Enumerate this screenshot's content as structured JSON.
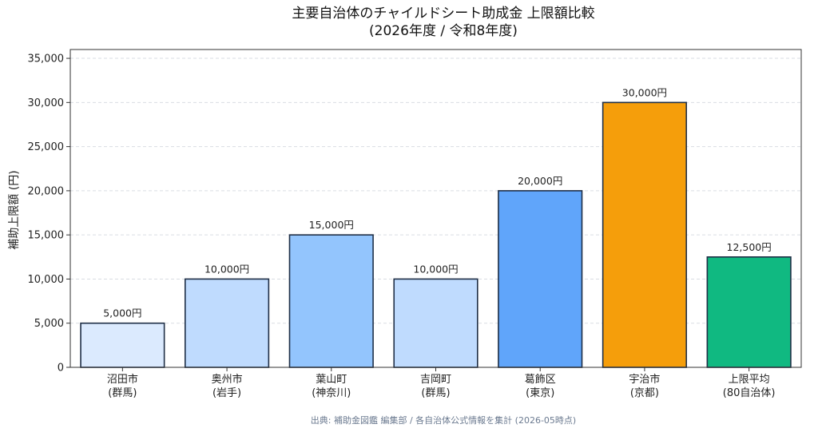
{
  "chart_data": {
    "type": "bar",
    "title": "主要自治体のチャイルドシート助成金 上限額比較",
    "subtitle": "(2026年度 / 令和8年度)",
    "xlabel": "",
    "ylabel": "補助上限額 (円)",
    "ylim": [
      0,
      36000
    ],
    "yticks": [
      "0",
      "5,000",
      "10,000",
      "15,000",
      "20,000",
      "25,000",
      "30,000",
      "35,000"
    ],
    "ytick_values": [
      0,
      5000,
      10000,
      15000,
      20000,
      25000,
      30000,
      35000
    ],
    "grid": true,
    "categories": [
      [
        "沼田市",
        "(群馬)"
      ],
      [
        "奥州市",
        "(岩手)"
      ],
      [
        "葉山町",
        "(神奈川)"
      ],
      [
        "吉岡町",
        "(群馬)"
      ],
      [
        "葛飾区",
        "(東京)"
      ],
      [
        "宇治市",
        "(京都)"
      ],
      [
        "上限平均",
        "(80自治体)"
      ]
    ],
    "values": [
      5000,
      10000,
      15000,
      10000,
      20000,
      30000,
      12500
    ],
    "value_labels": [
      "5,000円",
      "10,000円",
      "15,000円",
      "10,000円",
      "20,000円",
      "30,000円",
      "12,500円"
    ],
    "colors": [
      "#dbeafe",
      "#bfdbfe",
      "#93c5fd",
      "#bfdbfe",
      "#60a5fa",
      "#f59e0b",
      "#10b981"
    ],
    "source": "出典: 補助金図鑑 編集部 / 各自治体公式情報を集計 (2026-05時点)"
  }
}
